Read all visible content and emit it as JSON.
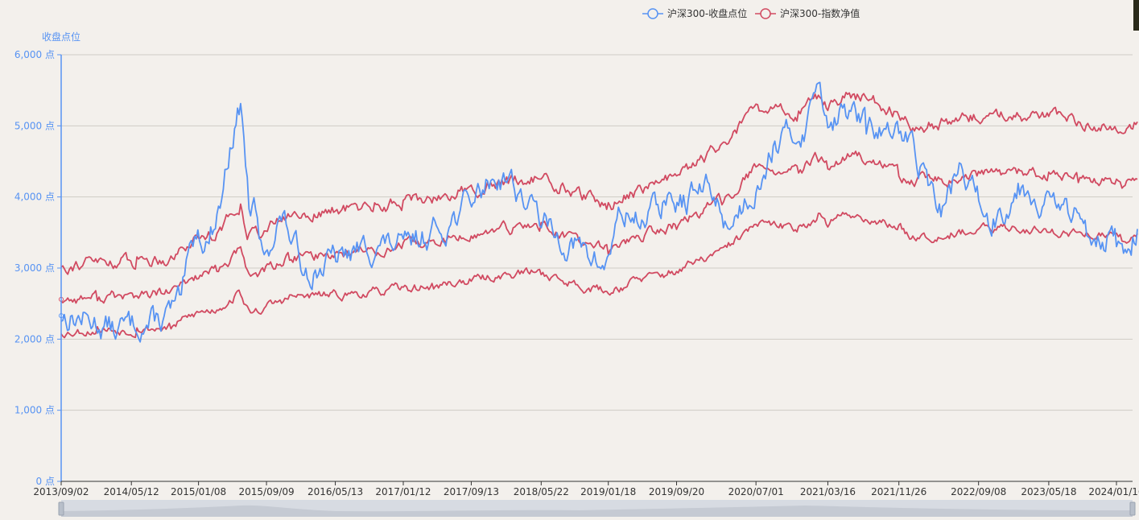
{
  "chart_data": {
    "type": "line",
    "ylabel": "收盘点位",
    "ylim": [
      0,
      6000
    ],
    "y_ticks": [
      "0 点",
      "1,000 点",
      "2,000 点",
      "3,000 点",
      "4,000 点",
      "5,000 点",
      "6,000 点"
    ],
    "y_tick_values": [
      0,
      1000,
      2000,
      3000,
      4000,
      5000,
      6000
    ],
    "x_labels": [
      "2013/09/02",
      "2014/05/12",
      "2015/01/08",
      "2015/09/09",
      "2016/05/13",
      "2017/01/12",
      "2017/09/13",
      "2018/05/22",
      "2019/01/18",
      "2019/09/20",
      "2020/07/01",
      "2021/03/16",
      "2021/11/26",
      "2022/09/08",
      "2023/05/18",
      "2024/01/16"
    ],
    "grid": "horizontal",
    "legend_position": "top-center",
    "legend": [
      "沪深300-收盘点位",
      "沪深300-指数净值"
    ],
    "series": [
      {
        "name": "沪深300-收盘点位",
        "color": "#5793f3",
        "x": [
          "2013/09/02",
          "2013/12/01",
          "2014/03/10",
          "2014/06/01",
          "2014/09/01",
          "2014/11/01",
          "2014/12/31",
          "2015/02/15",
          "2015/04/01",
          "2015/05/01",
          "2015/06/08",
          "2015/07/08",
          "2015/08/01",
          "2015/08/26",
          "2015/11/01",
          "2016/01/28",
          "2016/06/01",
          "2016/11/01",
          "2017/01/12",
          "2017/04/01",
          "2017/07/01",
          "2017/11/22",
          "2018/01/24",
          "2018/04/01",
          "2018/07/01",
          "2018/10/01",
          "2019/01/03",
          "2019/03/01",
          "2019/05/01",
          "2019/08/01",
          "2019/11/01",
          "2020/01/15",
          "2020/03/23",
          "2020/07/01",
          "2020/09/01",
          "2021/01/01",
          "2021/02/10",
          "2021/03/16",
          "2021/06/01",
          "2021/08/01",
          "2021/11/26",
          "2022/01/01",
          "2022/04/26",
          "2022/07/01",
          "2022/10/31",
          "2023/01/28",
          "2023/05/18",
          "2023/08/01",
          "2023/10/01",
          "2024/01/16",
          "2024/02/05",
          "2024/03/31"
        ],
        "values": [
          2330,
          2300,
          2150,
          2200,
          2250,
          2500,
          3530,
          3400,
          4000,
          4700,
          5300,
          3900,
          3800,
          3150,
          3750,
          2950,
          3150,
          3350,
          3300,
          3450,
          3650,
          4250,
          4300,
          3900,
          3500,
          3300,
          3000,
          3800,
          3700,
          3850,
          3950,
          4150,
          3600,
          4150,
          4700,
          5000,
          5700,
          5100,
          5200,
          5000,
          4850,
          4850,
          3800,
          4400,
          3600,
          4150,
          3950,
          3750,
          3600,
          3400,
          3200,
          3550
        ]
      },
      {
        "name": "沪深300-指数净值",
        "color": "#d14a61",
        "x": [
          "2013/09/02",
          "2014/01/10",
          "2014/06/01",
          "2014/10/01",
          "2015/01/08",
          "2015/03/15",
          "2015/06/08",
          "2015/07/08",
          "2015/08/26",
          "2015/12/01",
          "2016/05/13",
          "2016/10/01",
          "2017/01/12",
          "2017/05/01",
          "2017/09/13",
          "2018/01/24",
          "2018/05/22",
          "2018/08/01",
          "2019/01/18",
          "2019/04/01",
          "2019/09/20",
          "2020/03/01",
          "2020/07/01",
          "2020/12/01",
          "2021/02/10",
          "2021/03/16",
          "2021/06/01",
          "2021/11/26",
          "2022/01/15",
          "2022/06/01",
          "2022/09/08",
          "2023/01/01",
          "2023/05/18",
          "2023/09/01",
          "2024/01/16",
          "2024/02/05",
          "2024/03/31"
        ],
        "values": [
          2560,
          2600,
          2600,
          2650,
          2900,
          2950,
          3250,
          2900,
          2950,
          3150,
          3200,
          3250,
          3300,
          3350,
          3450,
          3550,
          3600,
          3450,
          3250,
          3400,
          3600,
          3950,
          4400,
          4350,
          4550,
          4400,
          4600,
          4350,
          4200,
          4250,
          4300,
          4350,
          4300,
          4250,
          4200,
          4150,
          4250
        ]
      }
    ]
  }
}
